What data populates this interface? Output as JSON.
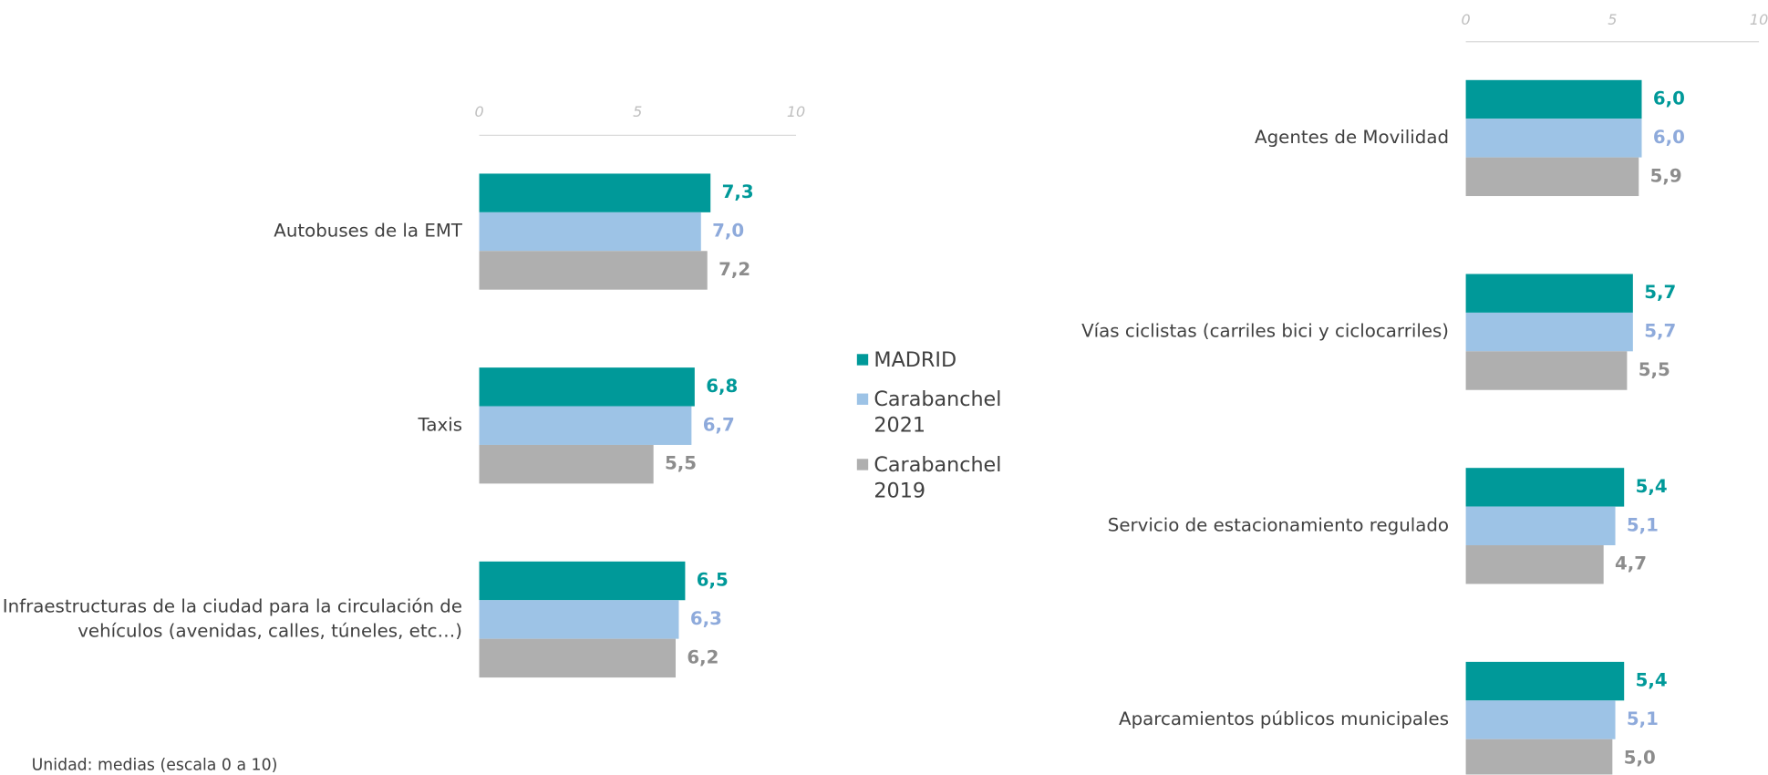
{
  "note": "Unidad: medias (escala 0 a 10)",
  "chart_data": [
    {
      "type": "bar",
      "orientation": "horizontal",
      "categories": [
        "Autobuses de la EMT",
        "Taxis",
        "Infraestructuras de la ciudad para la circulación de vehículos (avenidas, calles, túneles, etc…)"
      ],
      "series": [
        {
          "name": "MADRID",
          "color": "#009999",
          "label_color": "#009999",
          "values": [
            7.3,
            6.8,
            6.5
          ],
          "value_labels": [
            "7,3",
            "6,8",
            "6,5"
          ]
        },
        {
          "name": "Carabanchel 2021",
          "color": "#9dc3e6",
          "label_color": "#8eaadb",
          "values": [
            7.0,
            6.7,
            6.3
          ],
          "value_labels": [
            "7,0",
            "6,7",
            "6,3"
          ]
        },
        {
          "name": "Carabanchel 2019",
          "color": "#afafaf",
          "label_color": "#8c8c8c",
          "values": [
            7.2,
            5.5,
            6.2
          ],
          "value_labels": [
            "7,2",
            "5,5",
            "6,2"
          ]
        }
      ],
      "xlim": [
        0,
        10
      ],
      "xticks": [
        0,
        5,
        10
      ]
    },
    {
      "type": "bar",
      "orientation": "horizontal",
      "categories": [
        "Agentes de Movilidad",
        "Vías ciclistas (carriles bici y ciclocarriles)",
        "Servicio de estacionamiento regulado",
        "Aparcamientos públicos municipales"
      ],
      "series": [
        {
          "color": "#009999",
          "label_color": "#009999",
          "values": [
            6.0,
            5.7,
            5.4,
            5.4
          ],
          "value_labels": [
            "6,0",
            "5,7",
            "5,4",
            "5,4"
          ]
        },
        {
          "color": "#9dc3e6",
          "label_color": "#8eaadb",
          "values": [
            6.0,
            5.7,
            5.1,
            5.1
          ],
          "value_labels": [
            "6,0",
            "5,7",
            "5,1",
            "5,1"
          ]
        },
        {
          "color": "#afafaf",
          "label_color": "#8c8c8c",
          "values": [
            5.9,
            5.5,
            4.7,
            5.0
          ],
          "value_labels": [
            "5,9",
            "5,5",
            "4,7",
            "5,0"
          ]
        }
      ],
      "xlim": [
        0,
        10
      ],
      "xticks": [
        0,
        5,
        10
      ]
    }
  ]
}
